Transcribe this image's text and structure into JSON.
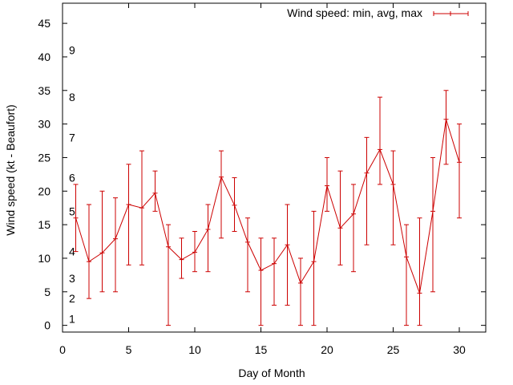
{
  "chart_data": {
    "type": "line",
    "title": "",
    "xlabel": "Day of Month",
    "ylabel": "Wind speed (kt - Beaufort)",
    "xlim": [
      0,
      32
    ],
    "ylim": [
      -1,
      48
    ],
    "xticks": [
      0,
      5,
      10,
      15,
      20,
      25,
      30
    ],
    "yticks": [
      0,
      5,
      10,
      15,
      20,
      25,
      30,
      35,
      40,
      45
    ],
    "grid": false,
    "legend_position": "top-right",
    "series": [
      {
        "name": "Wind speed: min, avg, max",
        "color": "#cc0000",
        "x": [
          1,
          2,
          3,
          4,
          5,
          6,
          7,
          8,
          9,
          10,
          11,
          12,
          13,
          14,
          15,
          16,
          17,
          18,
          19,
          20,
          21,
          22,
          23,
          24,
          25,
          26,
          27,
          28,
          29,
          30
        ],
        "avg": [
          16,
          9.5,
          10.8,
          12.9,
          18,
          17.5,
          19.7,
          11.7,
          9.8,
          10.9,
          14.3,
          22.1,
          17.9,
          12.4,
          8.2,
          9.2,
          12,
          6.3,
          9.5,
          20.8,
          14.5,
          16.6,
          22.7,
          26.2,
          21,
          10.2,
          4.8,
          17,
          30.7,
          24.3
        ],
        "min": [
          11,
          4,
          5,
          5,
          9,
          9,
          17,
          0,
          7,
          8,
          8,
          13,
          14,
          5,
          0,
          3,
          3,
          0,
          0,
          17,
          9,
          8,
          12,
          21,
          12,
          0,
          0,
          5,
          24,
          16
        ],
        "max": [
          21,
          18,
          20,
          19,
          24,
          26,
          23,
          15,
          13,
          14,
          18,
          26,
          22,
          16,
          13,
          13,
          18,
          10,
          17,
          25,
          23,
          21,
          28,
          34,
          26,
          15,
          16,
          25,
          35,
          30
        ]
      }
    ],
    "annotations": [
      {
        "text": "1",
        "y": 1
      },
      {
        "text": "2",
        "y": 4
      },
      {
        "text": "3",
        "y": 7
      },
      {
        "text": "4",
        "y": 11
      },
      {
        "text": "5",
        "y": 17
      },
      {
        "text": "6",
        "y": 22
      },
      {
        "text": "7",
        "y": 28
      },
      {
        "text": "8",
        "y": 34
      },
      {
        "text": "9",
        "y": 41
      }
    ]
  }
}
